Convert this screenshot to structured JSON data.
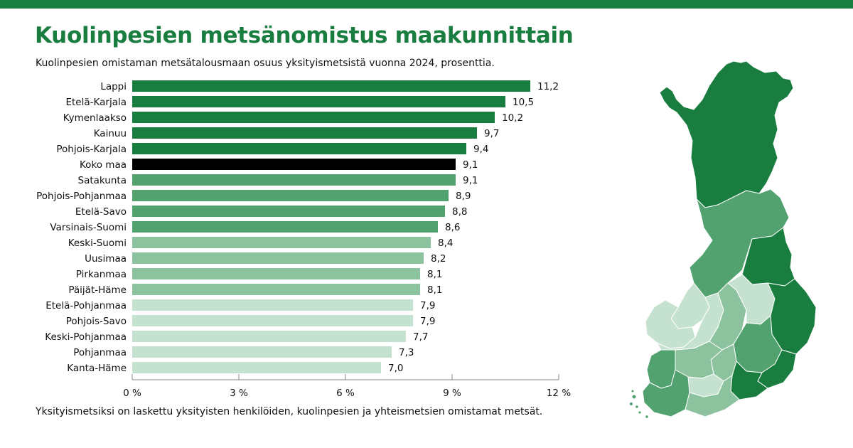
{
  "title": "Kuolinpesien metsänomistus maakunnittain",
  "subtitle": "Kuolinpesien omistaman metsätalousmaan osuus yksityismetsistä vuonna 2024, prosenttia.",
  "footnote": "Yksityismetsiksi on laskettu yksityisten henkilöiden, kuolinpesien ja yhteismetsien omistamat metsät.",
  "colors": {
    "accent": "#1a7d40",
    "dark_green": "#1a7d40",
    "mid_green": "#52a26f",
    "light_green": "#8cc29e",
    "pale_green": "#c5e1cf",
    "highlight": "#000000"
  },
  "chart_data": {
    "type": "bar",
    "orientation": "horizontal",
    "categories": [
      "Lappi",
      "Etelä-Karjala",
      "Kymenlaakso",
      "Kainuu",
      "Pohjois-Karjala",
      "Koko maa",
      "Satakunta",
      "Pohjois-Pohjanmaa",
      "Etelä-Savo",
      "Varsinais-Suomi",
      "Keski-Suomi",
      "Uusimaa",
      "Pirkanmaa",
      "Päijät-Häme",
      "Etelä-Pohjanmaa",
      "Pohjois-Savo",
      "Keski-Pohjanmaa",
      "Pohjanmaa",
      "Kanta-Häme"
    ],
    "values": [
      11.2,
      10.5,
      10.2,
      9.7,
      9.4,
      9.1,
      9.1,
      8.9,
      8.8,
      8.6,
      8.4,
      8.2,
      8.1,
      8.1,
      7.9,
      7.9,
      7.7,
      7.3,
      7.0
    ],
    "value_labels": [
      "11,2",
      "10,5",
      "10,2",
      "9,7",
      "9,4",
      "9,1",
      "9,1",
      "8,9",
      "8,8",
      "8,6",
      "8,4",
      "8,2",
      "8,1",
      "8,1",
      "7,9",
      "7,9",
      "7,7",
      "7,3",
      "7,0"
    ],
    "bar_colors": [
      "#1a7d40",
      "#1a7d40",
      "#1a7d40",
      "#1a7d40",
      "#1a7d40",
      "#000000",
      "#52a26f",
      "#52a26f",
      "#52a26f",
      "#52a26f",
      "#8cc29e",
      "#8cc29e",
      "#8cc29e",
      "#8cc29e",
      "#c5e1cf",
      "#c5e1cf",
      "#c5e1cf",
      "#c5e1cf",
      "#c5e1cf"
    ],
    "xlim": [
      0,
      12
    ],
    "xticks": [
      0,
      3,
      6,
      9,
      12
    ],
    "xtick_labels": [
      "0 %",
      "3 %",
      "6 %",
      "9 %",
      "12 %"
    ],
    "grid": false,
    "legend": "none"
  }
}
